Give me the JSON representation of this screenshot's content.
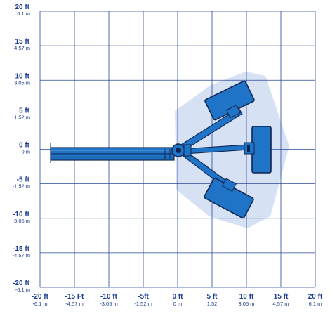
{
  "chart_data": {
    "type": "diagram",
    "x_axis": {
      "ticks": [
        {
          "ft": -20,
          "ft_label": "-20 ft",
          "m_label": "-6.1 m"
        },
        {
          "ft": -15,
          "ft_label": "-15 Ft",
          "m_label": "-4.57 m"
        },
        {
          "ft": -10,
          "ft_label": "-10 ft",
          "m_label": "-3.05 m"
        },
        {
          "ft": -5,
          "ft_label": "-5ft",
          "m_label": "-1.52 m"
        },
        {
          "ft": 0,
          "ft_label": "0 ft",
          "m_label": "0 m"
        },
        {
          "ft": 5,
          "ft_label": "5 ft",
          "m_label": "1.52"
        },
        {
          "ft": 10,
          "ft_label": "10 ft",
          "m_label": "3.05 m"
        },
        {
          "ft": 15,
          "ft_label": "15 ft",
          "m_label": "4.57 m"
        },
        {
          "ft": 20,
          "ft_label": "20 ft",
          "m_label": "6.1 m"
        }
      ]
    },
    "y_axis": {
      "ticks": [
        {
          "ft": 20,
          "ft_label": "20 ft",
          "m_label": "6.1 m"
        },
        {
          "ft": 15,
          "ft_label": "15 ft",
          "m_label": "4.57 m"
        },
        {
          "ft": 10,
          "ft_label": "10 ft",
          "m_label": "3.05 m"
        },
        {
          "ft": 5,
          "ft_label": "5 ft",
          "m_label": "1.52 m"
        },
        {
          "ft": 0,
          "ft_label": "0 ft",
          "m_label": "0 m"
        },
        {
          "ft": -5,
          "ft_label": "-5 ft",
          "m_label": "-1.52 m"
        },
        {
          "ft": -10,
          "ft_label": "-10 ft",
          "m_label": "-3.05 m"
        },
        {
          "ft": -15,
          "ft_label": "-15 ft",
          "m_label": "-4.57 m"
        },
        {
          "ft": -20,
          "ft_label": "-20 ft",
          "m_label": "-6.1 m"
        }
      ]
    },
    "range_ft": {
      "x": [
        -20,
        20
      ],
      "y": [
        -20,
        20
      ]
    },
    "grid": true,
    "colors": {
      "grid": "#2a4a9c",
      "label": "#1b3c8f",
      "envelope": "#d6e2f4",
      "machine": "#1f74c8",
      "outline": "#10244d"
    }
  }
}
